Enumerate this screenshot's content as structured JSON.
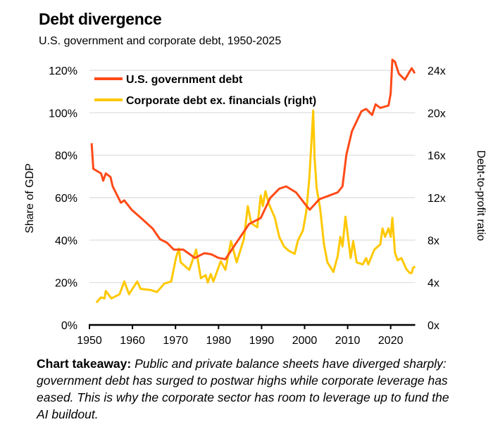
{
  "title": "Debt divergence",
  "subtitle": "U.S. government and corporate debt, 1950-2025",
  "takeaway": {
    "label": "Chart takeaway:",
    "text": " Public and private balance sheets have diverged sharply: government debt has surged to postwar highs while corporate leverage has eased. This is why the corporate sector has room to leverage up to fund the AI buildout."
  },
  "chart_data": {
    "type": "line",
    "title": "Debt divergence",
    "subtitle": "U.S. government and corporate debt, 1950-2025",
    "ylabel": "Share of GDP",
    "y2label": "Debt-to-profit ratio",
    "xlim": [
      1950,
      2025.7
    ],
    "ylim": [
      0,
      120
    ],
    "y2lim": [
      0,
      24
    ],
    "x_ticks": [
      "1950",
      "1960",
      "1970",
      "1980",
      "1990",
      "2000",
      "2010",
      "2020"
    ],
    "y_ticks": [
      "0%",
      "20%",
      "40%",
      "60%",
      "80%",
      "100%",
      "120%"
    ],
    "y2_ticks": [
      "0x",
      "4x",
      "8x",
      "12x",
      "16x",
      "20x",
      "24x"
    ],
    "grid": "horizontal",
    "legend_position": "top-left",
    "series": [
      {
        "name": "U.S. government debt",
        "axis": "left",
        "color": "#ff4a17",
        "x": [
          1950.5,
          1950.9,
          1952.7,
          1953.2,
          1953.8,
          1954.9,
          1955.4,
          1957.3,
          1958.1,
          1959.8,
          1962,
          1964.7,
          1966.4,
          1968,
          1969.6,
          1971.8,
          1974.5,
          1976.7,
          1978.3,
          1980,
          1981.6,
          1983.8,
          1987.1,
          1989.8,
          1992,
          1994.1,
          1995.7,
          1998,
          2000.1,
          2001.2,
          2003.4,
          2005.6,
          2007.7,
          2008.8,
          2009.7,
          2011,
          2013.2,
          2014.3,
          2015.7,
          2016.5,
          2017.6,
          2019.5,
          2020,
          2020.4,
          2021,
          2021.9,
          2023.3,
          2024.4,
          2024.9,
          2025.6
        ],
        "y": [
          85.7,
          73.6,
          71.4,
          68,
          71.4,
          69.7,
          65.3,
          57.6,
          58.7,
          54.3,
          50.4,
          45.4,
          40.4,
          38.8,
          35.5,
          35.5,
          31.6,
          33.8,
          33.3,
          31.6,
          31,
          37.7,
          47.6,
          50.4,
          59.8,
          64.2,
          65.3,
          62.5,
          57,
          54.3,
          59.2,
          60.9,
          62.5,
          65.3,
          80.2,
          91.3,
          100.7,
          101.8,
          99,
          104,
          102.3,
          103.4,
          109,
          125,
          124,
          118.4,
          115.6,
          119.4,
          121,
          118.6
        ]
      },
      {
        "name": "Corporate debt ex. financials (right)",
        "axis": "right",
        "color": "#ffc800",
        "x": [
          1951.6,
          1952.7,
          1953.5,
          1953.8,
          1955.1,
          1957,
          1958.1,
          1959.2,
          1961.1,
          1961.9,
          1964.1,
          1965.7,
          1967.4,
          1969,
          1970.1,
          1970.8,
          1971.2,
          1973.2,
          1974.8,
          1975.9,
          1977,
          1977.5,
          1978.2,
          1978.8,
          1980.5,
          1981.6,
          1982.9,
          1984.2,
          1985.9,
          1986.8,
          1987.6,
          1989,
          1989.8,
          1990.3,
          1990.9,
          1991.7,
          1993.1,
          1994.1,
          1995.2,
          1996.3,
          1997.7,
          1998.5,
          1999.6,
          2000.4,
          2001.1,
          2001.8,
          2002,
          2002.3,
          2002.8,
          2003.6,
          2004.5,
          2005.3,
          2006.7,
          2007.7,
          2008.3,
          2008.8,
          2009.5,
          2010.7,
          2011.3,
          2012.1,
          2013.5,
          2014.3,
          2014.8,
          2016.2,
          2017.6,
          2018.1,
          2018.7,
          2019.5,
          2020,
          2020.4,
          2021,
          2021.6,
          2022.5,
          2023.6,
          2024.4,
          2024.9,
          2025.2,
          2025.7
        ],
        "y": [
          2.1,
          2.6,
          2.5,
          3.2,
          2.5,
          2.9,
          4.1,
          2.9,
          4.1,
          3.4,
          3.3,
          3.1,
          3.9,
          4.1,
          6.3,
          7.2,
          5.9,
          5.2,
          7.1,
          4.4,
          4.7,
          4.0,
          4.8,
          4.1,
          6.0,
          5.2,
          7.9,
          5.9,
          8.1,
          11.2,
          9.6,
          9.2,
          12.2,
          11.2,
          12.6,
          11.4,
          10.1,
          8.3,
          7.4,
          7.0,
          6.7,
          8.0,
          8.9,
          10.7,
          13.8,
          18.7,
          20.2,
          15.8,
          12.9,
          11.0,
          7.6,
          5.9,
          5.0,
          6.5,
          8.3,
          7.4,
          10.2,
          6.3,
          7.9,
          5.9,
          5.7,
          6.3,
          5.7,
          7.1,
          7.6,
          9.1,
          8.3,
          9.1,
          8.3,
          10.1,
          6.8,
          6.1,
          6.3,
          5.3,
          4.9,
          4.9,
          5.4,
          5.5
        ]
      }
    ]
  }
}
